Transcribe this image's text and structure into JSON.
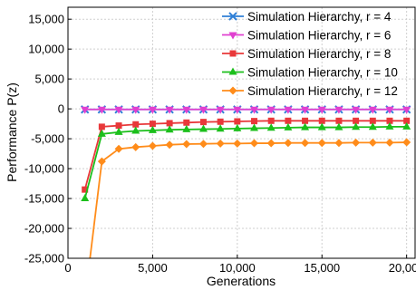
{
  "chart_data": {
    "type": "line",
    "title": "",
    "xlabel": "Generations",
    "ylabel": "Performance P(z)",
    "xlim": [
      0,
      20500
    ],
    "ylim": [
      -25000,
      17000
    ],
    "x_ticks": [
      0,
      5000,
      10000,
      15000,
      20000
    ],
    "x_tick_labels": [
      "0",
      "5,000",
      "10,000",
      "15,000",
      "20,000"
    ],
    "y_ticks": [
      15000,
      10000,
      5000,
      0,
      -5000,
      -10000,
      -15000,
      -20000,
      -25000
    ],
    "y_tick_labels": [
      "15,000",
      "10,000",
      "5,000",
      "0",
      "-5,000",
      "-10,000",
      "-15,000",
      "-20,000",
      "-25,000"
    ],
    "grid": true,
    "legend_position": "top-right",
    "x": [
      1000,
      2000,
      3000,
      4000,
      5000,
      6000,
      7000,
      8000,
      9000,
      10000,
      11000,
      12000,
      13000,
      14000,
      15000,
      16000,
      17000,
      18000,
      19000,
      20000
    ],
    "series": [
      {
        "name": "Simulation Hierarchy, r = 4",
        "color": "#2f7fd6",
        "marker": "x",
        "values": [
          -100,
          -100,
          -100,
          -100,
          -100,
          -100,
          -100,
          -100,
          -100,
          -100,
          -100,
          -100,
          -100,
          -100,
          -100,
          -100,
          -100,
          -100,
          -100,
          -100
        ]
      },
      {
        "name": "Simulation Hierarchy, r = 6",
        "color": "#e040d0",
        "marker": "triangle-down",
        "values": [
          -100,
          -100,
          -100,
          -100,
          -100,
          -100,
          -100,
          -100,
          -100,
          -100,
          -100,
          -100,
          -100,
          -100,
          -100,
          -100,
          -100,
          -100,
          -100,
          -100
        ]
      },
      {
        "name": "Simulation Hierarchy, r = 8",
        "color": "#e8383a",
        "marker": "square",
        "values": [
          -13500,
          -3000,
          -2800,
          -2600,
          -2500,
          -2400,
          -2300,
          -2200,
          -2150,
          -2100,
          -2050,
          -2000,
          -2000,
          -2000,
          -2000,
          -2000,
          -2000,
          -2000,
          -2000,
          -2000
        ]
      },
      {
        "name": "Simulation Hierarchy, r = 10",
        "color": "#1bbf1b",
        "marker": "triangle-up",
        "values": [
          -15000,
          -4200,
          -3900,
          -3700,
          -3600,
          -3500,
          -3450,
          -3400,
          -3350,
          -3300,
          -3250,
          -3200,
          -3150,
          -3100,
          -3100,
          -3100,
          -3050,
          -3050,
          -3000,
          -3000
        ]
      },
      {
        "name": "Simulation Hierarchy, r = 12",
        "color": "#ff8c1a",
        "marker": "diamond",
        "values": [
          -32000,
          -8800,
          -6700,
          -6400,
          -6200,
          -6000,
          -5900,
          -5850,
          -5800,
          -5800,
          -5750,
          -5750,
          -5700,
          -5700,
          -5700,
          -5700,
          -5650,
          -5650,
          -5650,
          -5600
        ]
      }
    ]
  }
}
